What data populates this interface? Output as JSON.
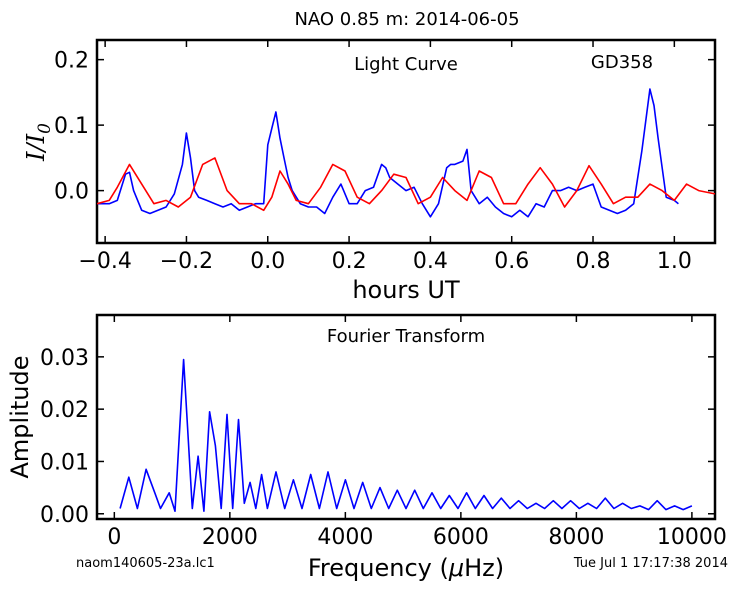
{
  "figure": {
    "title": "NAO 0.85 m:  2014-06-05",
    "footer_left": "naom140605-23a.lc1",
    "footer_right": "Tue Jul  1 17:17:38 2014"
  },
  "chart_data": [
    {
      "type": "line",
      "title": "Light Curve",
      "annotation": "GD358",
      "xlabel": "hours UT",
      "ylabel": "I/I0",
      "ylabel_main": "I/I",
      "ylabel_sub": "0",
      "xlim": [
        -0.42,
        1.1
      ],
      "ylim": [
        -0.08,
        0.23
      ],
      "xticks": [
        -0.4,
        -0.2,
        0.0,
        0.2,
        0.4,
        0.6,
        0.8,
        1.0
      ],
      "xtick_labels": [
        "−0.4",
        "−0.2",
        "0.0",
        "0.2",
        "0.4",
        "0.6",
        "0.8",
        "1.0"
      ],
      "yticks": [
        0.0,
        0.1,
        0.2
      ],
      "ytick_labels": [
        "0.0",
        "0.1",
        "0.2"
      ],
      "series": [
        {
          "color": "#0000ff",
          "x": [
            -0.42,
            -0.39,
            -0.37,
            -0.35,
            -0.34,
            -0.33,
            -0.31,
            -0.29,
            -0.27,
            -0.25,
            -0.23,
            -0.21,
            -0.2,
            -0.19,
            -0.18,
            -0.17,
            -0.15,
            -0.13,
            -0.11,
            -0.09,
            -0.07,
            -0.05,
            -0.03,
            -0.01,
            0.0,
            0.01,
            0.02,
            0.03,
            0.04,
            0.05,
            0.06,
            0.08,
            0.1,
            0.12,
            0.14,
            0.16,
            0.18,
            0.2,
            0.22,
            0.24,
            0.26,
            0.28,
            0.29,
            0.3,
            0.32,
            0.34,
            0.36,
            0.38,
            0.4,
            0.42,
            0.44,
            0.45,
            0.46,
            0.48,
            0.49,
            0.5,
            0.52,
            0.54,
            0.56,
            0.58,
            0.6,
            0.62,
            0.64,
            0.66,
            0.68,
            0.7,
            0.72,
            0.74,
            0.76,
            0.78,
            0.8,
            0.82,
            0.84,
            0.86,
            0.88,
            0.9,
            0.92,
            0.94,
            0.95,
            0.96,
            0.98,
            1.0,
            1.01
          ],
          "y": [
            -0.02,
            -0.02,
            -0.015,
            0.025,
            0.028,
            0.0,
            -0.03,
            -0.035,
            -0.03,
            -0.025,
            -0.005,
            0.04,
            0.088,
            0.05,
            0.0,
            -0.01,
            -0.015,
            -0.02,
            -0.025,
            -0.02,
            -0.03,
            -0.025,
            -0.02,
            -0.02,
            0.07,
            0.095,
            0.12,
            0.08,
            0.05,
            0.02,
            0.0,
            -0.02,
            -0.025,
            -0.025,
            -0.035,
            -0.01,
            0.01,
            -0.02,
            -0.02,
            0.0,
            0.005,
            0.04,
            0.035,
            0.02,
            0.01,
            0.0,
            0.005,
            -0.02,
            -0.04,
            -0.02,
            0.035,
            0.04,
            0.04,
            0.045,
            0.063,
            0.0,
            -0.02,
            -0.01,
            -0.025,
            -0.035,
            -0.04,
            -0.03,
            -0.04,
            -0.02,
            -0.025,
            0.0,
            0.0,
            0.005,
            0.0,
            0.005,
            0.01,
            -0.025,
            -0.03,
            -0.035,
            -0.03,
            -0.02,
            0.06,
            0.155,
            0.13,
            0.08,
            -0.01,
            -0.015,
            -0.02
          ]
        },
        {
          "color": "#ff0000",
          "x": [
            -0.42,
            -0.39,
            -0.37,
            -0.34,
            -0.31,
            -0.28,
            -0.25,
            -0.22,
            -0.19,
            -0.16,
            -0.13,
            -0.1,
            -0.07,
            -0.04,
            -0.01,
            0.01,
            0.03,
            0.05,
            0.07,
            0.1,
            0.13,
            0.16,
            0.19,
            0.22,
            0.25,
            0.28,
            0.31,
            0.34,
            0.37,
            0.4,
            0.43,
            0.46,
            0.49,
            0.52,
            0.55,
            0.58,
            0.61,
            0.64,
            0.67,
            0.7,
            0.73,
            0.76,
            0.79,
            0.82,
            0.85,
            0.88,
            0.91,
            0.94,
            0.97,
            1.0,
            1.03,
            1.06,
            1.1
          ],
          "y": [
            -0.02,
            -0.015,
            0.005,
            0.04,
            0.01,
            -0.02,
            -0.015,
            -0.025,
            -0.01,
            0.04,
            0.05,
            0.0,
            -0.02,
            -0.02,
            -0.03,
            -0.01,
            0.03,
            0.01,
            -0.015,
            -0.02,
            0.005,
            0.04,
            0.03,
            -0.01,
            -0.02,
            0.0,
            0.025,
            0.02,
            -0.02,
            -0.01,
            0.02,
            0.0,
            -0.015,
            0.03,
            0.02,
            -0.02,
            -0.02,
            0.01,
            0.035,
            0.01,
            -0.025,
            0.0,
            0.038,
            0.01,
            -0.02,
            -0.01,
            -0.01,
            0.01,
            0.0,
            -0.015,
            0.01,
            0.0,
            -0.005
          ]
        }
      ]
    },
    {
      "type": "line",
      "title": "Fourier Transform",
      "xlabel": "Frequency (μHz)",
      "xlabel_pre": "Frequency (",
      "xlabel_mu": "μ",
      "xlabel_post": "Hz)",
      "ylabel": "Amplitude",
      "xlim": [
        -300,
        10400
      ],
      "ylim": [
        -0.001,
        0.038
      ],
      "xticks": [
        0,
        2000,
        4000,
        6000,
        8000,
        10000
      ],
      "xtick_labels": [
        "0",
        "2000",
        "4000",
        "6000",
        "8000",
        "10000"
      ],
      "yticks": [
        0.0,
        0.01,
        0.02,
        0.03
      ],
      "ytick_labels": [
        "0.00",
        "0.01",
        "0.02",
        "0.03"
      ],
      "series": [
        {
          "color": "#0000ff",
          "x": [
            100,
            250,
            400,
            550,
            700,
            800,
            950,
            1050,
            1200,
            1350,
            1450,
            1550,
            1650,
            1750,
            1850,
            1950,
            2050,
            2150,
            2250,
            2350,
            2450,
            2550,
            2650,
            2800,
            2950,
            3100,
            3250,
            3400,
            3550,
            3700,
            3850,
            4000,
            4150,
            4300,
            4450,
            4600,
            4750,
            4900,
            5050,
            5200,
            5350,
            5500,
            5650,
            5800,
            5950,
            6100,
            6250,
            6400,
            6550,
            6700,
            6850,
            7000,
            7150,
            7300,
            7450,
            7600,
            7750,
            7900,
            8050,
            8200,
            8350,
            8500,
            8650,
            8800,
            8950,
            9100,
            9250,
            9400,
            9550,
            9700,
            9850,
            10000
          ],
          "y": [
            0.001,
            0.007,
            0.001,
            0.0085,
            0.004,
            0.001,
            0.004,
            0.0005,
            0.0295,
            0.001,
            0.011,
            0.0005,
            0.0195,
            0.013,
            0.001,
            0.019,
            0.001,
            0.018,
            0.002,
            0.006,
            0.001,
            0.0075,
            0.001,
            0.008,
            0.001,
            0.0065,
            0.001,
            0.0075,
            0.001,
            0.008,
            0.001,
            0.0065,
            0.001,
            0.006,
            0.001,
            0.005,
            0.001,
            0.0045,
            0.001,
            0.0045,
            0.001,
            0.004,
            0.001,
            0.0035,
            0.001,
            0.004,
            0.001,
            0.0035,
            0.001,
            0.003,
            0.001,
            0.0025,
            0.001,
            0.002,
            0.001,
            0.0025,
            0.001,
            0.0025,
            0.001,
            0.002,
            0.001,
            0.003,
            0.001,
            0.002,
            0.001,
            0.0015,
            0.0008,
            0.0025,
            0.0008,
            0.0015,
            0.0008,
            0.0015
          ]
        }
      ]
    }
  ]
}
